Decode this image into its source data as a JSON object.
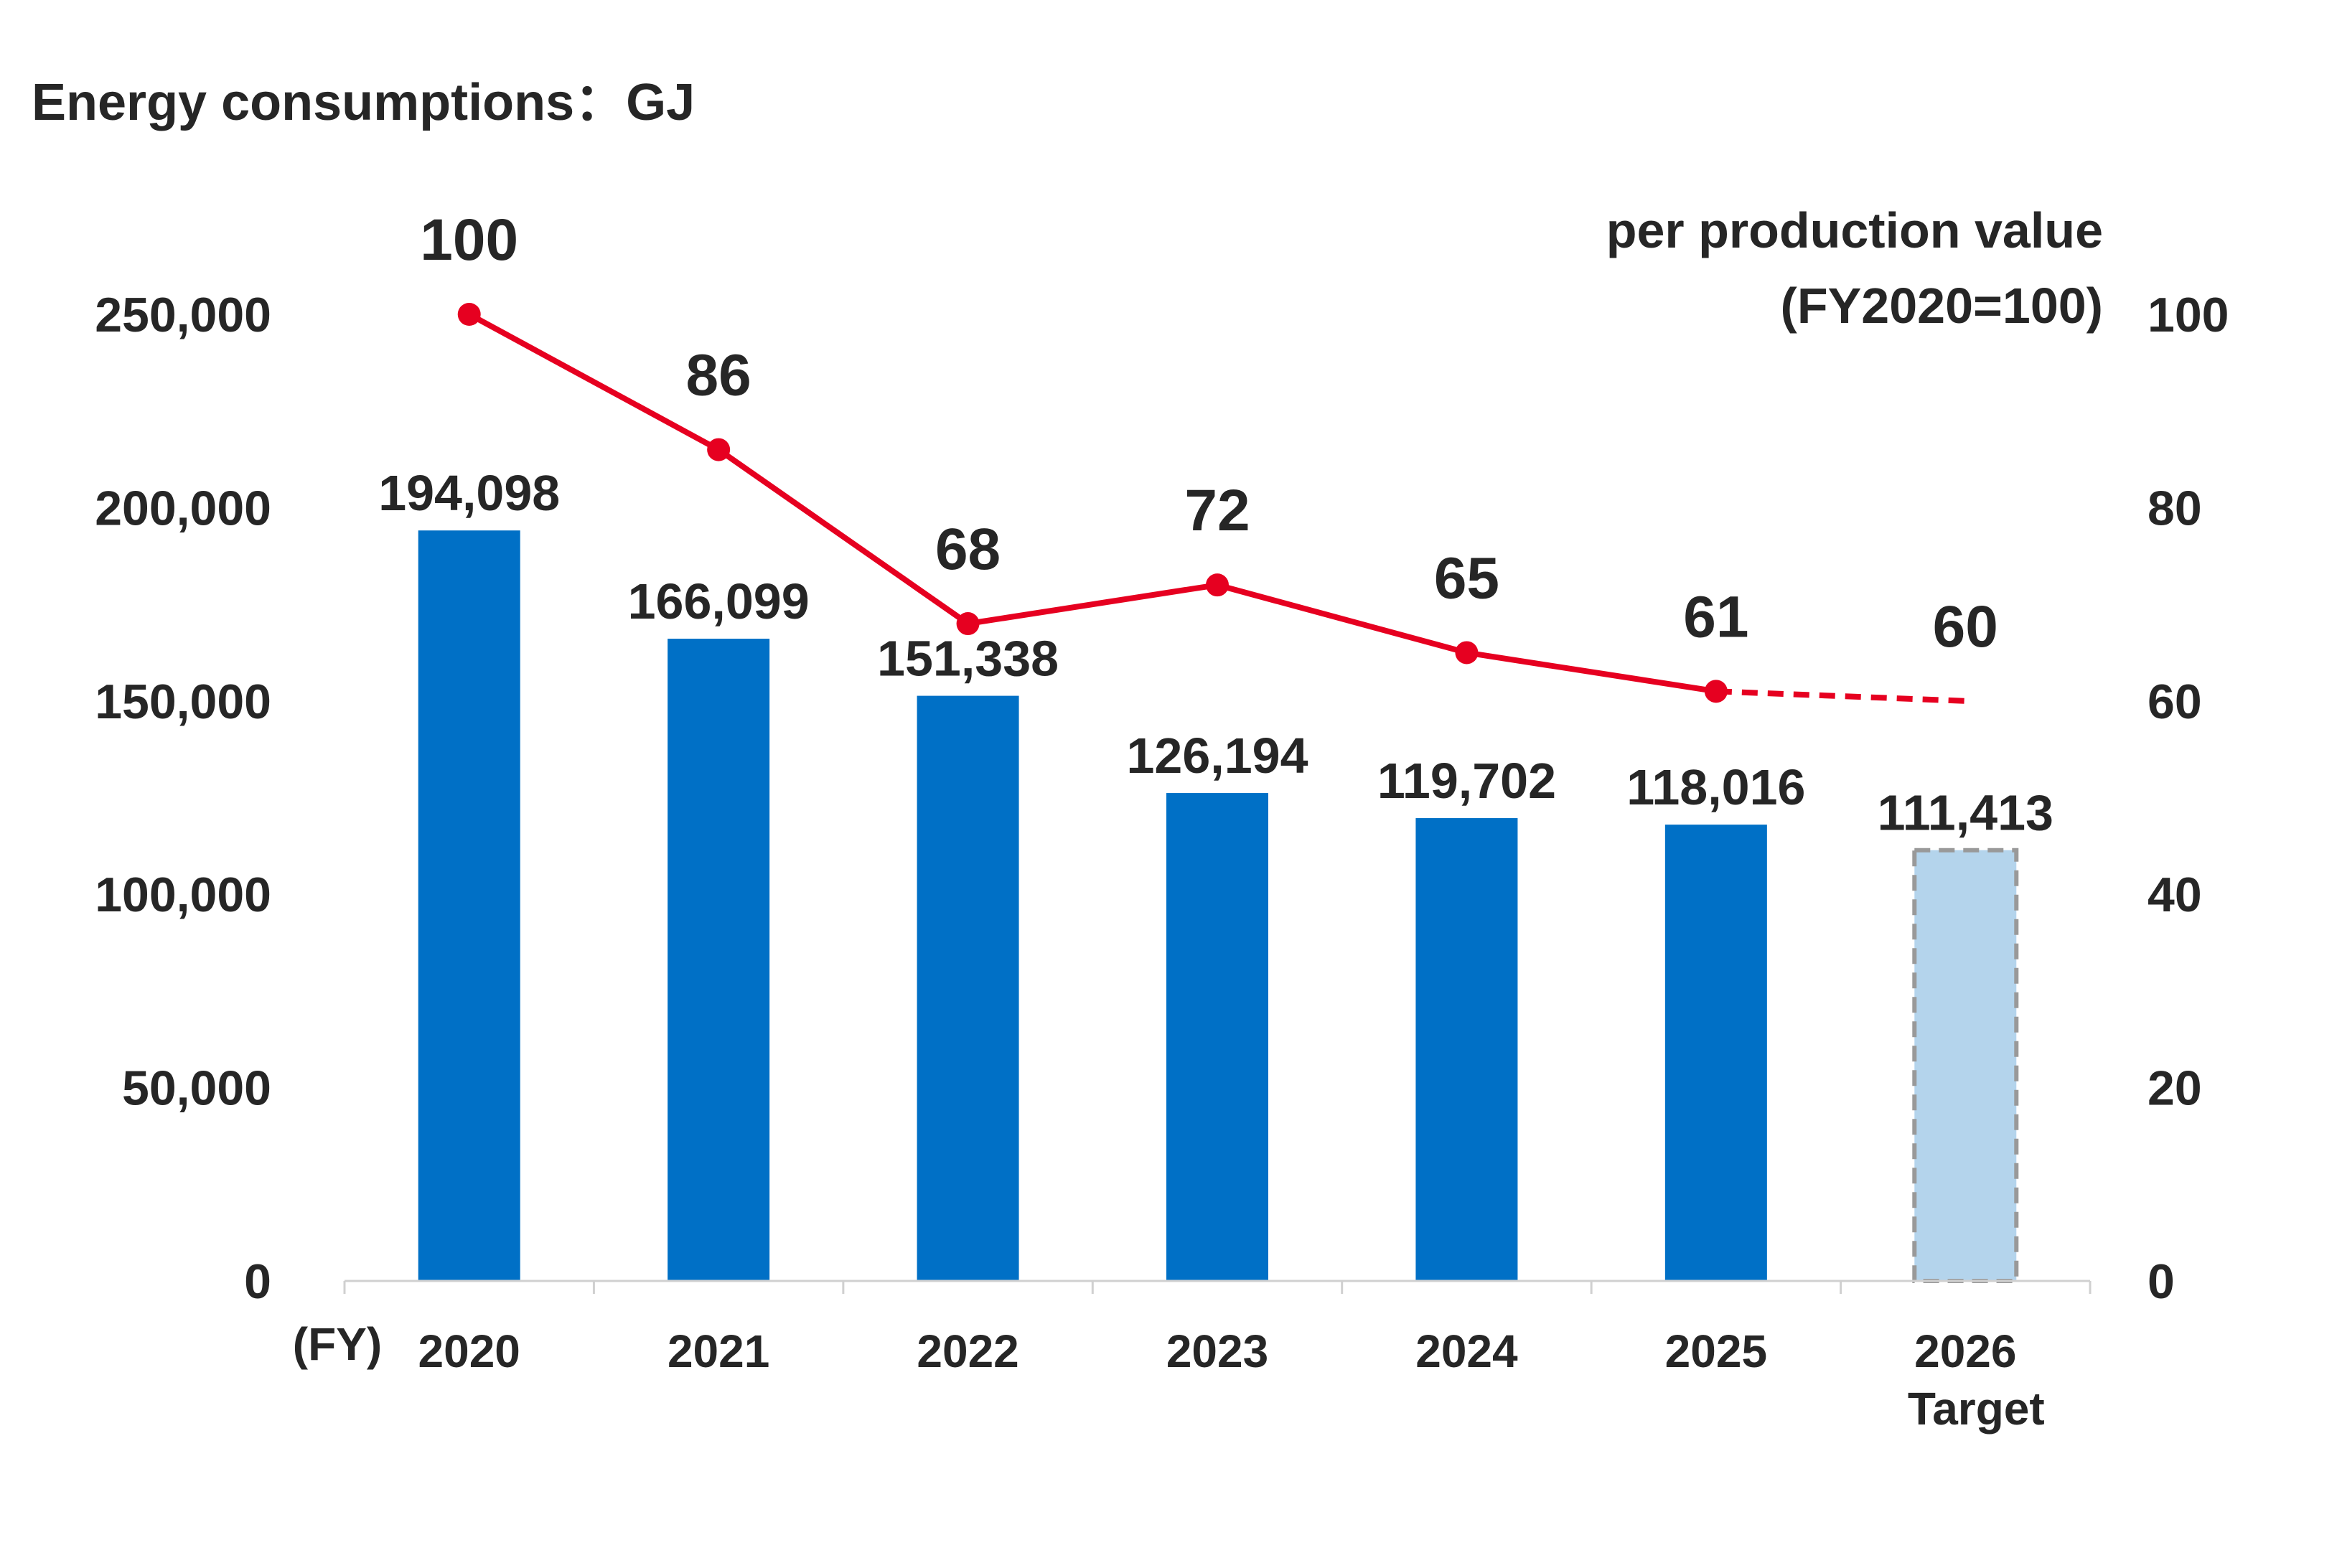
{
  "chart_data": {
    "type": "bar",
    "title": "Energy consumptions：GJ",
    "y2label_line1": "per production value",
    "y2label_line2": "(FY2020=100)",
    "x_unit_label": "(FY)",
    "categories": [
      "2020",
      "2021",
      "2022",
      "2023",
      "2024",
      "2025",
      "2026"
    ],
    "category_sublabels": [
      "",
      "",
      "",
      "",
      "",
      "",
      "Target"
    ],
    "ylim": [
      0,
      250000
    ],
    "y_ticks": [
      0,
      50000,
      100000,
      150000,
      200000,
      250000
    ],
    "y2lim": [
      0,
      100
    ],
    "y2_ticks": [
      0,
      20,
      40,
      60,
      80,
      100
    ],
    "series": [
      {
        "type": "bar",
        "axis": "left",
        "values": [
          194098,
          166099,
          151338,
          126194,
          119702,
          118016,
          111413
        ],
        "labels": [
          "194,098",
          "166,099",
          "151,338",
          "126,194",
          "119,702",
          "118,016",
          "111,413"
        ],
        "status": [
          "actual",
          "actual",
          "actual",
          "actual",
          "actual",
          "actual",
          "target"
        ]
      },
      {
        "type": "line",
        "axis": "right",
        "values": [
          100,
          86,
          68,
          72,
          65,
          61,
          60
        ],
        "labels": [
          "100",
          "86",
          "68",
          "72",
          "65",
          "61",
          "60"
        ],
        "status": [
          "actual",
          "actual",
          "actual",
          "actual",
          "actual",
          "actual",
          "target"
        ]
      }
    ],
    "grid": false,
    "legend": "none"
  },
  "colors": {
    "bar_actual": "#0070C6",
    "bar_target": "#B4D4EC",
    "bar_target_border": "#999999",
    "line": "#E60020",
    "axis": "#D0D0D0",
    "text": "#262626"
  }
}
